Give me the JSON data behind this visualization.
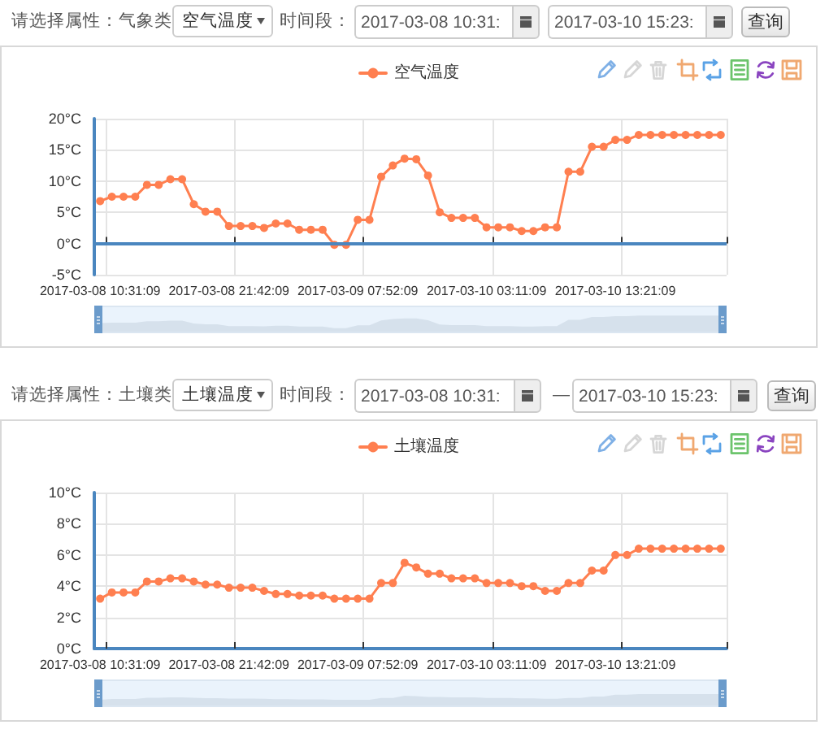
{
  "chart_data": [
    {
      "type": "line",
      "categories": [
        "2017-03-08 10:31:09",
        null,
        null,
        null,
        null,
        null,
        null,
        null,
        null,
        null,
        null,
        "2017-03-08 21:42:09",
        null,
        null,
        null,
        null,
        null,
        null,
        null,
        null,
        null,
        null,
        "2017-03-09 07:52:09",
        null,
        null,
        null,
        null,
        null,
        null,
        null,
        null,
        null,
        null,
        "2017-03-10 03:11:09",
        null,
        null,
        null,
        null,
        null,
        null,
        null,
        null,
        null,
        null,
        "2017-03-10 13:21:09",
        null,
        null,
        null,
        null,
        null,
        null,
        null,
        null,
        null
      ],
      "series": [
        {
          "name": "空气温度",
          "color": "#ff7f50",
          "values": [
            6.8,
            7.5,
            7.5,
            7.5,
            9.4,
            9.4,
            10.3,
            10.3,
            6.3,
            5.1,
            5.1,
            2.8,
            2.8,
            2.8,
            2.5,
            3.2,
            3.2,
            2.2,
            2.2,
            2.2,
            -0.2,
            -0.2,
            3.8,
            3.8,
            10.7,
            12.5,
            13.6,
            13.5,
            10.9,
            5.0,
            4.1,
            4.1,
            4.1,
            2.6,
            2.6,
            2.6,
            2.0,
            2.0,
            2.6,
            2.6,
            11.5,
            11.5,
            15.5,
            15.5,
            16.6,
            16.6,
            17.4,
            17.4,
            17.4,
            17.4,
            17.4,
            17.4,
            17.4,
            17.4
          ]
        }
      ],
      "ylim": [
        -5,
        20
      ],
      "yticks": [
        {
          "value": -5,
          "label": "-5°C"
        },
        {
          "value": 0,
          "label": "0°C"
        },
        {
          "value": 5,
          "label": "5°C"
        },
        {
          "value": 10,
          "label": "10°C"
        },
        {
          "value": 15,
          "label": "15°C"
        },
        {
          "value": 20,
          "label": "20°C"
        }
      ],
      "ref_lines": [
        {
          "axis": "y",
          "value": 0,
          "color": "#4a86bf"
        }
      ],
      "grid": true,
      "legend": "top",
      "marker": "circle",
      "annotations": [
        "请选择属性：气象类",
        "空气温度",
        "时间段：",
        "2017-03-08 10:31:",
        "2017-03-10 15:23:",
        "查询"
      ]
    },
    {
      "type": "line",
      "categories": [
        "2017-03-08 10:31:09",
        null,
        null,
        null,
        null,
        null,
        null,
        null,
        null,
        null,
        null,
        "2017-03-08 21:42:09",
        null,
        null,
        null,
        null,
        null,
        null,
        null,
        null,
        null,
        null,
        "2017-03-09 07:52:09",
        null,
        null,
        null,
        null,
        null,
        null,
        null,
        null,
        null,
        null,
        "2017-03-10 03:11:09",
        null,
        null,
        null,
        null,
        null,
        null,
        null,
        null,
        null,
        null,
        "2017-03-10 13:21:09",
        null,
        null,
        null,
        null,
        null,
        null,
        null,
        null,
        null
      ],
      "series": [
        {
          "name": "土壤温度",
          "color": "#ff7f50",
          "values": [
            3.2,
            3.6,
            3.6,
            3.6,
            4.3,
            4.3,
            4.5,
            4.5,
            4.3,
            4.1,
            4.1,
            3.9,
            3.9,
            3.9,
            3.7,
            3.5,
            3.5,
            3.4,
            3.4,
            3.4,
            3.2,
            3.2,
            3.2,
            3.2,
            4.2,
            4.2,
            5.5,
            5.2,
            4.8,
            4.8,
            4.5,
            4.5,
            4.5,
            4.2,
            4.2,
            4.2,
            4.0,
            4.0,
            3.7,
            3.7,
            4.2,
            4.2,
            5.0,
            5.0,
            6.0,
            6.0,
            6.4,
            6.4,
            6.4,
            6.4,
            6.4,
            6.4,
            6.4,
            6.4
          ]
        }
      ],
      "ylim": [
        0,
        10
      ],
      "yticks": [
        {
          "value": 0,
          "label": "0°C"
        },
        {
          "value": 2,
          "label": "2°C"
        },
        {
          "value": 4,
          "label": "4°C"
        },
        {
          "value": 6,
          "label": "6°C"
        },
        {
          "value": 8,
          "label": "8°C"
        },
        {
          "value": 10,
          "label": "10°C"
        }
      ],
      "grid": true,
      "legend": "top",
      "marker": "circle",
      "annotations": [
        "请选择属性：土壤类",
        "土壤温度",
        "时间段：",
        "2017-03-08 10:31:",
        "—",
        "2017-03-10 15:23:",
        "查询"
      ]
    }
  ]
}
